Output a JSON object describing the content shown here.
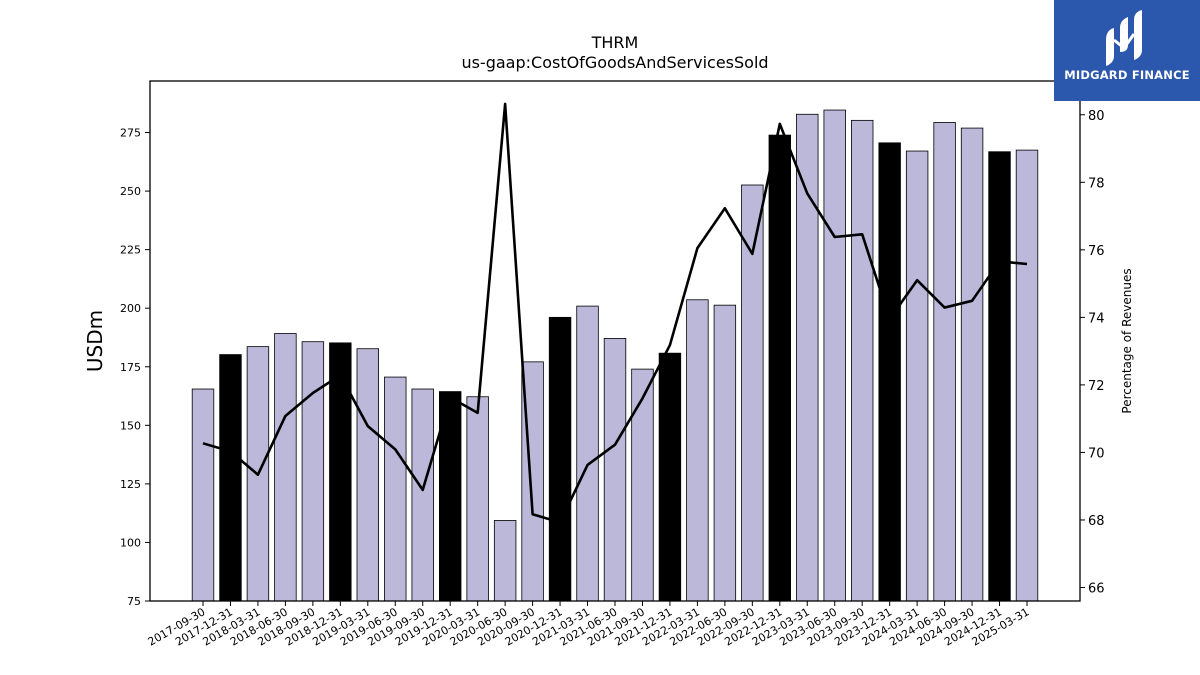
{
  "brand": {
    "name": "MIDGARD FINANCE",
    "color": "#2b57ac",
    "icon": "midgard-logo-icon"
  },
  "chart_data": {
    "type": "bar",
    "title": "THRM",
    "subtitle": "us-gaap:CostOfGoodsAndServicesSold",
    "ylabel": "USDm",
    "y2label": "Percentage of Revenues",
    "ylim": [
      75,
      297
    ],
    "y2lim": [
      65.6,
      81
    ],
    "yticks": [
      75,
      100,
      125,
      150,
      175,
      200,
      225,
      250,
      275
    ],
    "y2ticks": [
      66,
      68,
      70,
      72,
      74,
      76,
      78,
      80
    ],
    "grid": false,
    "colors": {
      "quarter": "#bcb8da",
      "year_end": "#000000",
      "line": "#000000"
    },
    "categories": [
      "2017-09-30",
      "2017-12-31",
      "2018-03-31",
      "2018-06-30",
      "2018-09-30",
      "2018-12-31",
      "2019-03-31",
      "2019-06-30",
      "2019-09-30",
      "2019-12-31",
      "2020-03-31",
      "2020-06-30",
      "2020-09-30",
      "2020-12-31",
      "2021-03-31",
      "2021-06-30",
      "2021-09-30",
      "2021-12-31",
      "2022-03-31",
      "2022-06-30",
      "2022-09-30",
      "2022-12-31",
      "2023-03-31",
      "2023-06-30",
      "2023-09-30",
      "2023-12-31",
      "2024-03-31",
      "2024-06-30",
      "2024-09-30",
      "2024-12-31",
      "2025-03-31"
    ],
    "series": [
      {
        "type": "bar",
        "values": [
          165.5,
          180.2,
          183.6,
          189.2,
          185.7,
          185.2,
          182.7,
          170.6,
          165.5,
          164.4,
          162.2,
          109.4,
          177.1,
          196.1,
          200.9,
          187.1,
          174.0,
          180.8,
          203.6,
          201.3,
          252.6,
          273.9,
          282.8,
          284.6,
          280.2,
          270.6,
          267.1,
          279.3,
          276.9,
          266.8,
          267.5
        ],
        "highlight": [
          false,
          true,
          false,
          false,
          false,
          true,
          false,
          false,
          false,
          true,
          false,
          false,
          false,
          true,
          false,
          false,
          false,
          true,
          false,
          false,
          false,
          true,
          false,
          false,
          false,
          true,
          false,
          false,
          false,
          true,
          false
        ]
      },
      {
        "type": "line",
        "axis": "right",
        "values": [
          70.27,
          70.03,
          69.34,
          71.08,
          71.76,
          72.29,
          70.78,
          70.09,
          68.89,
          71.63,
          71.17,
          80.32,
          68.17,
          67.93,
          69.63,
          70.23,
          71.6,
          73.18,
          76.05,
          77.23,
          75.88,
          79.73,
          77.67,
          76.38,
          76.46,
          73.95,
          75.1,
          74.29,
          74.49,
          75.66,
          75.58
        ]
      }
    ]
  }
}
